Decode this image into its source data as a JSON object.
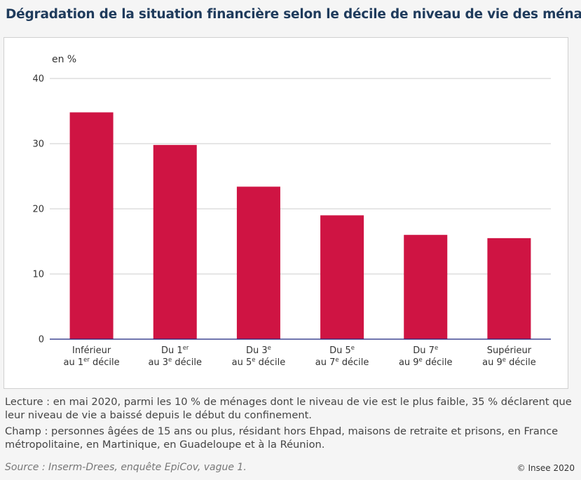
{
  "title": "Dégradation de la situation financière selon le décile de niveau de vie des ménages",
  "chart_data": {
    "type": "bar",
    "title": "Dégradation de la situation financière selon le décile de niveau de vie des ménages",
    "ylabel": "en %",
    "ylim": [
      0,
      40
    ],
    "yticks": [
      0,
      10,
      20,
      30,
      40
    ],
    "grid": true,
    "categories": [
      [
        {
          "t": "Inférieur"
        },
        {
          "t": "au 1"
        },
        {
          "t": "er",
          "sup": true
        },
        {
          "t": " décile"
        }
      ],
      [
        {
          "t": "Du 1"
        },
        {
          "t": "er",
          "sup": true
        },
        {
          "t": "au 3"
        },
        {
          "t": "e",
          "sup": true
        },
        {
          "t": " décile"
        }
      ],
      [
        {
          "t": "Du 3"
        },
        {
          "t": "e",
          "sup": true
        },
        {
          "t": "au 5"
        },
        {
          "t": "e",
          "sup": true
        },
        {
          "t": " décile"
        }
      ],
      [
        {
          "t": "Du 5"
        },
        {
          "t": "e",
          "sup": true
        },
        {
          "t": "au 7"
        },
        {
          "t": "e",
          "sup": true
        },
        {
          "t": " décile"
        }
      ],
      [
        {
          "t": "Du 7"
        },
        {
          "t": "e",
          "sup": true
        },
        {
          "t": "au 9"
        },
        {
          "t": "e",
          "sup": true
        },
        {
          "t": " décile"
        }
      ],
      [
        {
          "t": "Supérieur"
        },
        {
          "t": "au 9"
        },
        {
          "t": "e",
          "sup": true
        },
        {
          "t": " décile"
        }
      ]
    ],
    "category_labels": [
      [
        "Inférieur",
        "au 1er décile"
      ],
      [
        "Du 1er",
        "au 3e décile"
      ],
      [
        "Du 3e",
        "au 5e décile"
      ],
      [
        "Du 5e",
        "au 7e décile"
      ],
      [
        "Du 7e",
        "au 9e décile"
      ],
      [
        "Supérieur",
        "au 9e décile"
      ]
    ],
    "values": [
      34.8,
      29.8,
      23.4,
      19.0,
      16.0,
      15.5
    ],
    "color": "#cf1443"
  },
  "notes": {
    "lecture": "Lecture : en mai 2020, parmi les 10 % de ménages dont le niveau de vie est le plus faible, 35 % déclarent que leur niveau de vie a baissé depuis le début du confinement.",
    "champ": "Champ : personnes âgées de 15 ans ou plus, résidant hors Ehpad, maisons de retraite et prisons, en France métropolitaine, en Martinique, en Guadeloupe et à la Réunion."
  },
  "source": "Source : Inserm-Drees, enquête EpiCov, vague 1.",
  "copyright": "© Insee 2020"
}
